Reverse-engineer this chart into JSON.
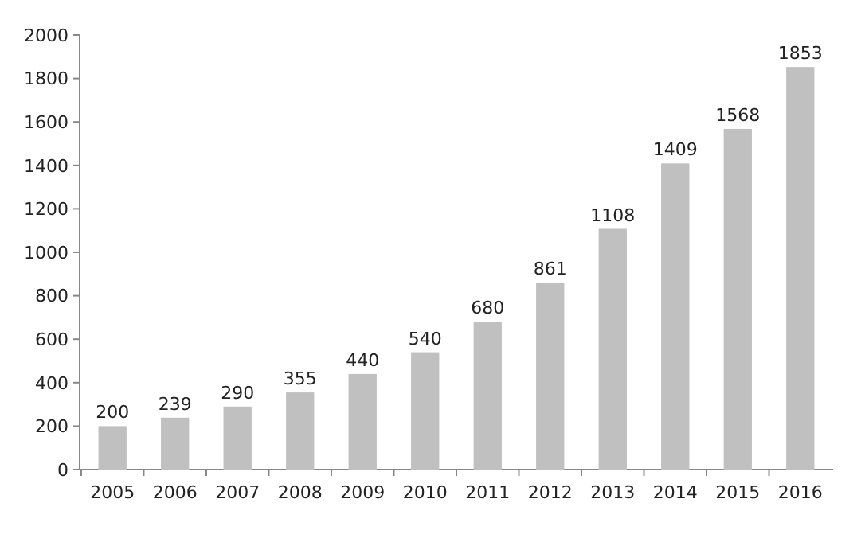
{
  "chart_data": {
    "type": "bar",
    "categories": [
      "2005",
      "2006",
      "2007",
      "2008",
      "2009",
      "2010",
      "2011",
      "2012",
      "2013",
      "2014",
      "2015",
      "2016"
    ],
    "values": [
      200,
      239,
      290,
      355,
      440,
      540,
      680,
      861,
      1108,
      1409,
      1568,
      1853
    ],
    "color": "#c0c0c0",
    "ylim": [
      0,
      2000
    ],
    "yticks": [
      0,
      200,
      400,
      600,
      800,
      1000,
      1200,
      1400,
      1600,
      1800,
      2000
    ],
    "data_labels": true,
    "grid": false
  }
}
